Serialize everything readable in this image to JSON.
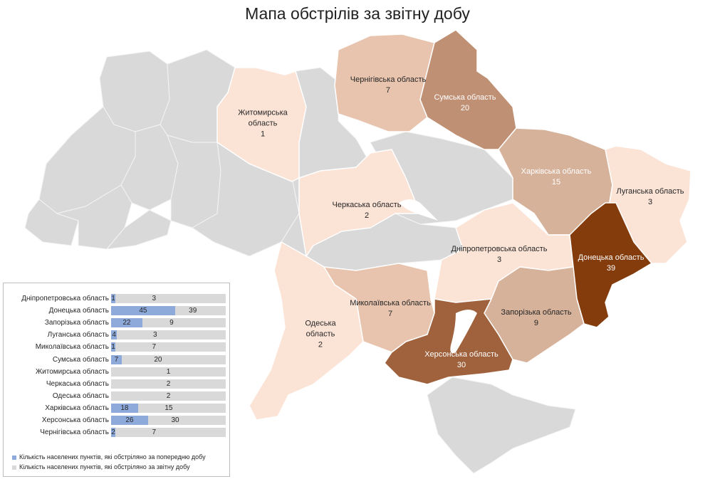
{
  "title": "Мапа обстрілів за звітну добу",
  "colors": {
    "gray": "#d9d9d9",
    "scale_1_3": "#fbe3d6",
    "scale_7": "#e8c4ae",
    "scale_9_15": "#d7b29b",
    "scale_20": "#c09074",
    "scale_30": "#a0623d",
    "scale_39": "#843c0c",
    "bar_prev": "#8eaadb",
    "bar_cur": "#d9d9d9"
  },
  "regions": [
    {
      "name": "Житомирська",
      "name2": "область",
      "value": "1"
    },
    {
      "name": "Чернігівська область",
      "value": "7"
    },
    {
      "name": "Сумська область",
      "value": "20"
    },
    {
      "name": "Харківська область",
      "value": "15"
    },
    {
      "name": "Луганська область",
      "value": "3"
    },
    {
      "name": "Черкаська область",
      "value": "2"
    },
    {
      "name": "Дніпропетровська область",
      "value": "3"
    },
    {
      "name": "Донецька область",
      "value": "39"
    },
    {
      "name": "Одеська",
      "name2": "область",
      "value": "2"
    },
    {
      "name": "Миколаївська область",
      "value": "7"
    },
    {
      "name": "Запорізька область",
      "value": "9"
    },
    {
      "name": "Херсонська область",
      "value": "30"
    }
  ],
  "chart_data": {
    "type": "bar",
    "categories": [
      "Дніпропетровська область",
      "Донецька область",
      "Запорізька область",
      "Луганська область",
      "Миколаївська область",
      "Сумська область",
      "Житомирська область",
      "Черкаська область",
      "Одеська область",
      "Харківська область",
      "Херсонська область",
      "Чернігівська область"
    ],
    "series": [
      {
        "name": "Кількість населених пунктів, які обстріляно за попередню добу",
        "values": [
          1,
          45,
          22,
          4,
          1,
          7,
          null,
          null,
          null,
          18,
          26,
          2
        ]
      },
      {
        "name": "Кількість населених пунктів, які обстріляно за звітну добу",
        "values": [
          3,
          39,
          9,
          3,
          7,
          20,
          1,
          2,
          2,
          15,
          30,
          7
        ]
      }
    ],
    "stacked": true,
    "legend_position": "bottom"
  }
}
